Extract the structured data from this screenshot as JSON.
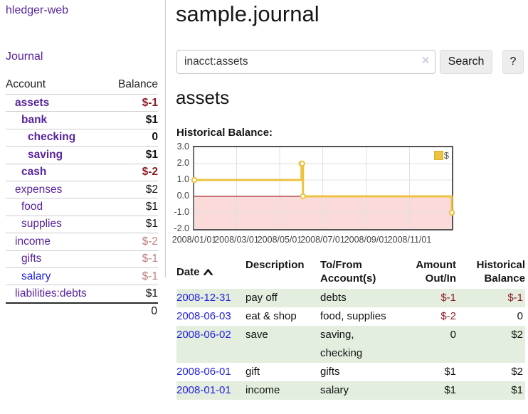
{
  "app": {
    "title": "hledger-web"
  },
  "colors": {
    "link_purple": "#58259c",
    "link_blue": "#2222dd",
    "negative_strong": "#8b1c24",
    "negative_muted": "#bd7e7e",
    "row_stripe_green": "#e3eedf",
    "chart_series_gold": "#edc240",
    "chart_negative_region": "#fbdada",
    "chart_zero_line": "#990000"
  },
  "sidebar": {
    "journal_label": "Journal",
    "accounts": {
      "col_account": "Account",
      "col_balance": "Balance",
      "rows": [
        {
          "name": "assets",
          "balance": "$-1"
        },
        {
          "name": "bank",
          "balance": "$1"
        },
        {
          "name": "checking",
          "balance": "0"
        },
        {
          "name": "saving",
          "balance": "$1"
        },
        {
          "name": "cash",
          "balance": "$-2"
        },
        {
          "name": "expenses",
          "balance": "$2"
        },
        {
          "name": "food",
          "balance": "$1"
        },
        {
          "name": "supplies",
          "balance": "$1"
        },
        {
          "name": "income",
          "balance": "$-2"
        },
        {
          "name": "gifts",
          "balance": "$-1"
        },
        {
          "name": "salary",
          "balance": "$-1"
        },
        {
          "name": "liabilities:debts",
          "balance": "$1"
        }
      ],
      "total": "0"
    }
  },
  "main": {
    "title": "sample.journal",
    "search": {
      "value": "inacct:assets",
      "clear_icon": "×",
      "search_label": "Search",
      "help_label": "?"
    },
    "account_heading": "assets",
    "chart_label": "Historical Balance:"
  },
  "register": {
    "columns": {
      "date": "Date",
      "sort_icon": "chevron-up",
      "description": "Description",
      "accounts": "To/From Account(s)",
      "amount": "Amount Out/In",
      "balance": "Historical Balance"
    },
    "rows": [
      {
        "date": "2008-12-31",
        "description": "pay off",
        "accounts": "debts",
        "amount": "$-1",
        "balance": "$-1"
      },
      {
        "date": "2008-06-03",
        "description": "eat & shop",
        "accounts": "food, supplies",
        "amount": "$-2",
        "balance": "0"
      },
      {
        "date": "2008-06-02",
        "description": "save",
        "accounts": "saving, checking",
        "amount": "0",
        "balance": "$2"
      },
      {
        "date": "2008-06-01",
        "description": "gift",
        "accounts": "gifts",
        "amount": "$1",
        "balance": "$2"
      },
      {
        "date": "2008-01-01",
        "description": "income",
        "accounts": "salary",
        "amount": "$1",
        "balance": "$1"
      }
    ]
  },
  "chart_data": {
    "type": "line",
    "title": "Historical Balance",
    "steps": true,
    "x_range": [
      "2008-01-01",
      "2008-12-31"
    ],
    "ylim": [
      -2,
      3
    ],
    "series": [
      {
        "name": "$",
        "color": "#edc240",
        "points": [
          {
            "date": "2008-01-01",
            "value": 1
          },
          {
            "date": "2008-06-01",
            "value": 2
          },
          {
            "date": "2008-06-02",
            "value": 2
          },
          {
            "date": "2008-06-03",
            "value": 0
          },
          {
            "date": "2008-12-31",
            "value": -1
          }
        ]
      }
    ],
    "yticks": [
      {
        "v": 3,
        "label": "3.0"
      },
      {
        "v": 2,
        "label": "2.0"
      },
      {
        "v": 1,
        "label": "1.0"
      },
      {
        "v": 0,
        "label": "0.0"
      },
      {
        "v": -1,
        "label": "-1.0"
      },
      {
        "v": -2,
        "label": "-2.0"
      }
    ],
    "xticks": [
      {
        "date": "2008-01-01",
        "label": "2008/01/01"
      },
      {
        "date": "2008-03-01",
        "label": "2008/03/01"
      },
      {
        "date": "2008-05-01",
        "label": "2008/05/01"
      },
      {
        "date": "2008-07-01",
        "label": "2008/07/01"
      },
      {
        "date": "2008-09-01",
        "label": "2008/09/01"
      },
      {
        "date": "2008-11-01",
        "label": "2008/11/01"
      }
    ],
    "legend": {
      "label": "$",
      "position": "top-right"
    },
    "grid": true,
    "grid_color": "#e0e0e0",
    "negative_region_color": "#fbdada",
    "zero_line_color": "#990000"
  }
}
